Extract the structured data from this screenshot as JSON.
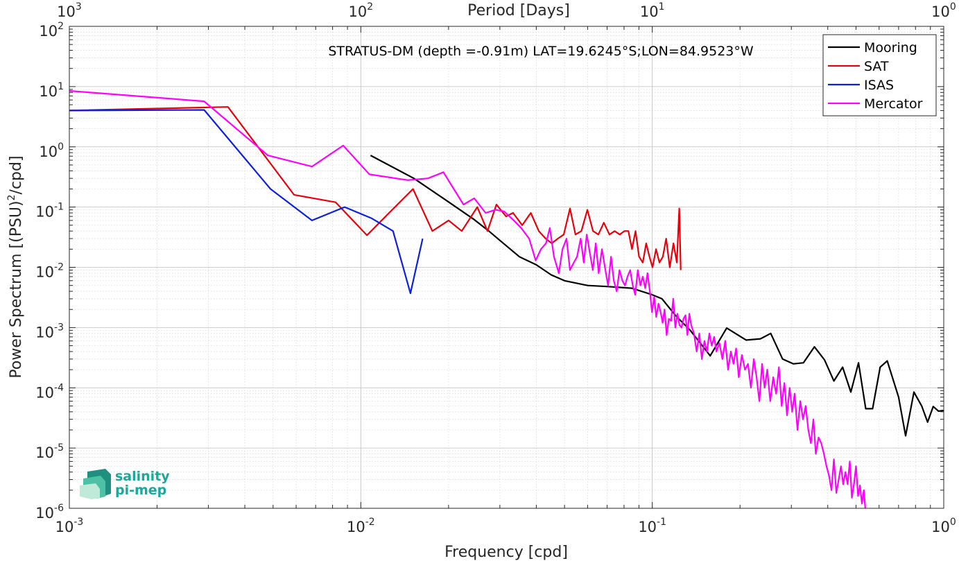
{
  "chart_data": {
    "type": "line",
    "annotation": "STRATUS-DM (depth =-0.91m) LAT=19.6245°S;LON=84.9523°W",
    "xlabel": "Frequency [cpd]",
    "ylabel": "Power Spectrum [(PSU)",
    "ylabel_sup": "2",
    "ylabel_tail": "/cpd]",
    "top_xlabel": "Period [Days]",
    "xscale": "log",
    "yscale": "log",
    "xlim": [
      0.001,
      1
    ],
    "ylim": [
      1e-06,
      100
    ],
    "grid": true,
    "minor_grid": true,
    "legend_position": "top-right",
    "x_ticks": [
      {
        "base": "10",
        "exp": "-3",
        "value": 0.001
      },
      {
        "base": "10",
        "exp": "-2",
        "value": 0.01
      },
      {
        "base": "10",
        "exp": "-1",
        "value": 0.1
      },
      {
        "base": "10",
        "exp": "0",
        "value": 1
      }
    ],
    "top_x_ticks": [
      {
        "base": "10",
        "exp": "3",
        "value": 0.001
      },
      {
        "base": "10",
        "exp": "2",
        "value": 0.01
      },
      {
        "base": "10",
        "exp": "1",
        "value": 0.1
      },
      {
        "base": "10",
        "exp": "0",
        "value": 1
      }
    ],
    "y_ticks": [
      {
        "base": "10",
        "exp": "2",
        "value": 100
      },
      {
        "base": "10",
        "exp": "1",
        "value": 10
      },
      {
        "base": "10",
        "exp": "0",
        "value": 1
      },
      {
        "base": "10",
        "exp": "-1",
        "value": 0.1
      },
      {
        "base": "10",
        "exp": "-2",
        "value": 0.01
      },
      {
        "base": "10",
        "exp": "-3",
        "value": 0.001
      },
      {
        "base": "10",
        "exp": "-4",
        "value": 0.0001
      },
      {
        "base": "10",
        "exp": "-5",
        "value": 1e-05
      },
      {
        "base": "10",
        "exp": "-6",
        "value": 1e-06
      }
    ],
    "series": [
      {
        "name": "Mooring",
        "color": "#000000",
        "points": [
          [
            0.0108,
            0.72
          ],
          [
            0.0152,
            0.3
          ],
          [
            0.0196,
            0.13
          ],
          [
            0.0245,
            0.062
          ],
          [
            0.0275,
            0.04
          ],
          [
            0.03,
            0.028
          ],
          [
            0.035,
            0.015
          ],
          [
            0.04,
            0.011
          ],
          [
            0.045,
            0.0075
          ],
          [
            0.05,
            0.006
          ],
          [
            0.06,
            0.005
          ],
          [
            0.07,
            0.0048
          ],
          [
            0.085,
            0.0045
          ],
          [
            0.1,
            0.0035
          ],
          [
            0.108,
            0.003
          ],
          [
            0.12,
            0.0016
          ],
          [
            0.135,
            0.0009
          ],
          [
            0.158,
            0.00034
          ],
          [
            0.18,
            0.00098
          ],
          [
            0.21,
            0.00062
          ],
          [
            0.235,
            0.00065
          ],
          [
            0.255,
            0.0008
          ],
          [
            0.28,
            0.0003
          ],
          [
            0.305,
            0.00025
          ],
          [
            0.33,
            0.00026
          ],
          [
            0.36,
            0.00048
          ],
          [
            0.39,
            0.00029
          ],
          [
            0.42,
            0.00013
          ],
          [
            0.45,
            0.00022
          ],
          [
            0.48,
            8.5e-05
          ],
          [
            0.51,
            0.00026
          ],
          [
            0.54,
            4.5e-05
          ],
          [
            0.57,
            4.5e-05
          ],
          [
            0.605,
            0.00022
          ],
          [
            0.64,
            0.00028
          ],
          [
            0.7,
            7e-05
          ],
          [
            0.74,
            1.6e-05
          ],
          [
            0.79,
            8.5e-05
          ],
          [
            0.84,
            5e-05
          ],
          [
            0.88,
            2.7e-05
          ],
          [
            0.92,
            4.9e-05
          ],
          [
            0.96,
            4.1e-05
          ],
          [
            1.0,
            4.2e-05
          ]
        ]
      },
      {
        "name": "SAT",
        "color": "#e8000b",
        "points": [
          [
            0.001,
            4.0
          ],
          [
            0.0035,
            4.6
          ],
          [
            0.0059,
            0.16
          ],
          [
            0.0082,
            0.12
          ],
          [
            0.0105,
            0.034
          ],
          [
            0.0125,
            0.08
          ],
          [
            0.0151,
            0.2
          ],
          [
            0.0176,
            0.04
          ],
          [
            0.02,
            0.06
          ],
          [
            0.0222,
            0.04
          ],
          [
            0.0251,
            0.1
          ],
          [
            0.0272,
            0.04
          ],
          [
            0.0292,
            0.11
          ],
          [
            0.0315,
            0.07
          ],
          [
            0.0333,
            0.08
          ],
          [
            0.0358,
            0.05
          ],
          [
            0.0383,
            0.08
          ],
          [
            0.0408,
            0.04
          ],
          [
            0.0431,
            0.03
          ],
          [
            0.0452,
            0.025
          ],
          [
            0.0474,
            0.03
          ],
          [
            0.0497,
            0.035
          ],
          [
            0.0522,
            0.095
          ],
          [
            0.0545,
            0.035
          ],
          [
            0.0571,
            0.04
          ],
          [
            0.0599,
            0.09
          ],
          [
            0.0626,
            0.04
          ],
          [
            0.0653,
            0.035
          ],
          [
            0.0682,
            0.055
          ],
          [
            0.0713,
            0.035
          ],
          [
            0.0743,
            0.04
          ],
          [
            0.0773,
            0.035
          ],
          [
            0.0802,
            0.04
          ],
          [
            0.0828,
            0.04
          ],
          [
            0.0852,
            0.02
          ],
          [
            0.0876,
            0.04
          ],
          [
            0.0901,
            0.015
          ],
          [
            0.0928,
            0.012
          ],
          [
            0.0953,
            0.025
          ],
          [
            0.0978,
            0.015
          ],
          [
            0.1002,
            0.01
          ],
          [
            0.103,
            0.02
          ],
          [
            0.1058,
            0.012
          ],
          [
            0.1087,
            0.015
          ],
          [
            0.1116,
            0.03
          ],
          [
            0.1148,
            0.01
          ],
          [
            0.1182,
            0.025
          ],
          [
            0.1214,
            0.012
          ],
          [
            0.1238,
            0.095
          ],
          [
            0.1252,
            0.009
          ]
        ]
      },
      {
        "name": "ISAS",
        "color": "#0a1fe0",
        "points": [
          [
            0.001,
            4.0
          ],
          [
            0.0029,
            4.1
          ],
          [
            0.0049,
            0.2
          ],
          [
            0.0068,
            0.06
          ],
          [
            0.0088,
            0.1
          ],
          [
            0.0109,
            0.065
          ],
          [
            0.0129,
            0.04
          ],
          [
            0.0148,
            0.0037
          ],
          [
            0.0163,
            0.03
          ]
        ]
      },
      {
        "name": "Mercator",
        "color": "#ff00ff",
        "points": [
          [
            0.001,
            8.5
          ],
          [
            0.0029,
            5.7
          ],
          [
            0.0048,
            0.72
          ],
          [
            0.0068,
            0.47
          ],
          [
            0.0087,
            1.05
          ],
          [
            0.0107,
            0.35
          ],
          [
            0.0145,
            0.28
          ],
          [
            0.017,
            0.3
          ],
          [
            0.0192,
            0.38
          ],
          [
            0.0225,
            0.11
          ],
          [
            0.0245,
            0.14
          ],
          [
            0.0268,
            0.08
          ],
          [
            0.029,
            0.09
          ],
          [
            0.031,
            0.085
          ],
          [
            0.0335,
            0.06
          ],
          [
            0.0355,
            0.045
          ],
          [
            0.0378,
            0.03
          ],
          [
            0.0398,
            0.013
          ],
          [
            0.0415,
            0.02
          ],
          [
            0.0432,
            0.025
          ],
          [
            0.0445,
            0.045
          ],
          [
            0.046,
            0.015
          ],
          [
            0.0478,
            0.008
          ],
          [
            0.0492,
            0.02
          ],
          [
            0.0508,
            0.03
          ],
          [
            0.0522,
            0.009
          ],
          [
            0.0538,
            0.012
          ],
          [
            0.0552,
            0.015
          ],
          [
            0.0568,
            0.03
          ],
          [
            0.0582,
            0.012
          ],
          [
            0.0596,
            0.035
          ],
          [
            0.061,
            0.018
          ],
          [
            0.0625,
            0.009
          ],
          [
            0.064,
            0.025
          ],
          [
            0.0655,
            0.008
          ],
          [
            0.0672,
            0.02
          ],
          [
            0.0688,
            0.01
          ],
          [
            0.0705,
            0.005
          ],
          [
            0.0722,
            0.015
          ],
          [
            0.0738,
            0.006
          ],
          [
            0.0755,
            0.004
          ],
          [
            0.0772,
            0.009
          ],
          [
            0.079,
            0.006
          ],
          [
            0.0806,
            0.005
          ],
          [
            0.0822,
            0.007
          ],
          [
            0.084,
            0.009
          ],
          [
            0.0857,
            0.005
          ],
          [
            0.0874,
            0.0035
          ],
          [
            0.0892,
            0.009
          ],
          [
            0.091,
            0.005
          ],
          [
            0.0928,
            0.007
          ],
          [
            0.0946,
            0.0045
          ],
          [
            0.0963,
            0.008
          ],
          [
            0.0981,
            0.004
          ],
          [
            0.0998,
            0.0018
          ],
          [
            0.1015,
            0.0032
          ],
          [
            0.1032,
            0.0015
          ],
          [
            0.105,
            0.0025
          ],
          [
            0.1068,
            0.0018
          ],
          [
            0.1085,
            0.0012
          ],
          [
            0.1102,
            0.002
          ],
          [
            0.112,
            0.00075
          ],
          [
            0.114,
            0.0014
          ],
          [
            0.116,
            0.0013
          ],
          [
            0.118,
            0.003
          ],
          [
            0.12,
            0.001
          ],
          [
            0.122,
            0.0017
          ],
          [
            0.124,
            0.0011
          ],
          [
            0.126,
            0.001
          ],
          [
            0.128,
            0.0014
          ],
          [
            0.13,
            0.0016
          ],
          [
            0.132,
            0.00075
          ],
          [
            0.134,
            0.0017
          ],
          [
            0.136,
            0.0011
          ],
          [
            0.139,
            0.0008
          ],
          [
            0.142,
            0.0004
          ],
          [
            0.145,
            0.0008
          ],
          [
            0.148,
            0.0003
          ],
          [
            0.151,
            0.0006
          ],
          [
            0.154,
            0.0004
          ],
          [
            0.157,
            0.0008
          ],
          [
            0.16,
            0.0005
          ],
          [
            0.163,
            0.0007
          ],
          [
            0.166,
            0.0004
          ],
          [
            0.17,
            0.00055
          ],
          [
            0.174,
            0.0003
          ],
          [
            0.178,
            0.0006
          ],
          [
            0.182,
            0.0002
          ],
          [
            0.186,
            0.0004
          ],
          [
            0.19,
            0.00025
          ],
          [
            0.194,
            0.00045
          ],
          [
            0.198,
            0.00015
          ],
          [
            0.203,
            0.00035
          ],
          [
            0.208,
            0.0002
          ],
          [
            0.213,
            0.00025
          ],
          [
            0.218,
            0.0001
          ],
          [
            0.223,
            0.0003
          ],
          [
            0.228,
            0.00015
          ],
          [
            0.233,
            6e-05
          ],
          [
            0.238,
            0.00025
          ],
          [
            0.243,
            0.0001
          ],
          [
            0.248,
            0.0002
          ],
          [
            0.254,
            6e-05
          ],
          [
            0.26,
            0.00015
          ],
          [
            0.266,
            8e-05
          ],
          [
            0.272,
            0.00022
          ],
          [
            0.278,
            5e-05
          ],
          [
            0.284,
            0.00012
          ],
          [
            0.29,
            3.5e-05
          ],
          [
            0.296,
            0.0001
          ],
          [
            0.302,
            4e-05
          ],
          [
            0.308,
            8e-05
          ],
          [
            0.315,
            2e-05
          ],
          [
            0.322,
            6e-05
          ],
          [
            0.329,
            3e-05
          ],
          [
            0.336,
            5e-05
          ],
          [
            0.343,
            2e-05
          ],
          [
            0.35,
            1.2e-05
          ],
          [
            0.357,
            3e-05
          ],
          [
            0.364,
            8e-06
          ],
          [
            0.372,
            1.5e-05
          ],
          [
            0.38,
            1.2e-05
          ],
          [
            0.388,
            8e-06
          ],
          [
            0.396,
            5e-06
          ],
          [
            0.404,
            3.5e-06
          ],
          [
            0.412,
            2e-06
          ],
          [
            0.42,
            6.5e-06
          ],
          [
            0.428,
            1.8e-06
          ],
          [
            0.436,
            3e-06
          ],
          [
            0.444,
            5e-06
          ],
          [
            0.452,
            2.5e-06
          ],
          [
            0.46,
            4e-06
          ],
          [
            0.468,
            2.5e-06
          ],
          [
            0.476,
            6e-06
          ],
          [
            0.484,
            1.5e-06
          ],
          [
            0.492,
            2.5e-06
          ],
          [
            0.5,
            5e-06
          ],
          [
            0.508,
            1.6e-06
          ],
          [
            0.516,
            2.4e-06
          ],
          [
            0.524,
            1.2e-06
          ],
          [
            0.532,
            2e-06
          ],
          [
            0.54,
            8e-07
          ]
        ]
      }
    ]
  },
  "logo": {
    "line1": "salinity",
    "line2": "pi-mep"
  }
}
